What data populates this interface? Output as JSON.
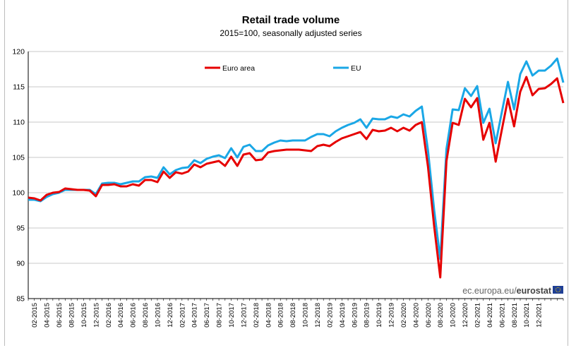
{
  "chart_data": {
    "type": "line",
    "title": "Retail trade volume",
    "subtitle": "2015=100, seasonally adjusted series",
    "xlabel": "",
    "ylabel": "",
    "ylim": [
      85,
      120
    ],
    "yticks": [
      85,
      90,
      95,
      100,
      105,
      110,
      115,
      120
    ],
    "grid": "horizontal",
    "legend_position": "top-left",
    "x_start": "01-2015",
    "x_end": "12-2021",
    "x_tick_labels": [
      "02-2015",
      "04-2015",
      "06-2015",
      "08-2015",
      "10-2015",
      "12-2015",
      "02-2016",
      "04-2016",
      "06-2016",
      "08-2016",
      "10-2016",
      "12-2016",
      "02-2017",
      "04-2017",
      "06-2017",
      "08-2017",
      "10-2017",
      "12-2017",
      "02-2018",
      "04-2018",
      "06-2018",
      "08-2018",
      "10-2018",
      "12-2018",
      "02-2019",
      "04-2019",
      "06-2019",
      "08-2019",
      "10-2019",
      "12-2019",
      "02-2020",
      "04-2020",
      "06-2020",
      "08-2020",
      "10-2020",
      "12-2020",
      "02-2021",
      "04-2021",
      "06-2021",
      "08-2021",
      "10-2021",
      "12-2021"
    ],
    "series": [
      {
        "name": "Euro area",
        "color": "#e60000",
        "values": [
          99.3,
          99.2,
          98.9,
          99.7,
          100.0,
          100.1,
          100.6,
          100.5,
          100.4,
          100.4,
          100.3,
          99.5,
          101.1,
          101.1,
          101.2,
          100.9,
          100.9,
          101.2,
          101.0,
          101.8,
          101.8,
          101.5,
          103.0,
          102.1,
          102.9,
          102.7,
          103.0,
          104.0,
          103.6,
          104.1,
          104.3,
          104.5,
          103.8,
          105.1,
          103.8,
          105.4,
          105.6,
          104.6,
          104.7,
          105.7,
          105.9,
          106.0,
          106.1,
          106.1,
          106.1,
          106.0,
          105.9,
          106.6,
          106.8,
          106.6,
          107.2,
          107.7,
          108.0,
          108.3,
          108.6,
          107.6,
          108.9,
          108.7,
          108.8,
          109.2,
          108.7,
          109.2,
          108.8,
          109.6,
          110.0,
          103.7,
          95.3,
          88.0,
          104.5,
          109.9,
          109.6,
          113.3,
          112.1,
          113.4,
          107.5,
          109.9,
          104.4,
          108.9,
          113.3,
          109.4,
          114.3,
          116.4,
          113.8,
          114.7,
          114.8,
          115.4,
          116.2,
          112.7
        ]
      },
      {
        "name": "EU",
        "color": "#1aa7e6",
        "values": [
          99.0,
          99.0,
          98.8,
          99.4,
          99.8,
          100.0,
          100.4,
          100.4,
          100.4,
          100.4,
          100.4,
          99.8,
          101.3,
          101.4,
          101.4,
          101.2,
          101.4,
          101.6,
          101.6,
          102.2,
          102.3,
          102.1,
          103.6,
          102.6,
          103.2,
          103.5,
          103.6,
          104.6,
          104.2,
          104.8,
          105.1,
          105.3,
          104.9,
          106.3,
          105.0,
          106.5,
          106.8,
          105.9,
          105.9,
          106.7,
          107.1,
          107.4,
          107.3,
          107.4,
          107.4,
          107.4,
          107.9,
          108.3,
          108.3,
          108.0,
          108.7,
          109.2,
          109.6,
          109.9,
          110.4,
          109.2,
          110.5,
          110.4,
          110.4,
          110.8,
          110.6,
          111.1,
          110.8,
          111.6,
          112.2,
          106.0,
          97.6,
          90.6,
          106.2,
          111.8,
          111.7,
          114.8,
          113.7,
          115.1,
          109.9,
          111.9,
          107.0,
          111.4,
          115.7,
          111.8,
          116.8,
          118.6,
          116.6,
          117.3,
          117.3,
          118.0,
          119.0,
          115.6
        ]
      }
    ]
  },
  "source": {
    "prefix": "ec.europa.eu/",
    "brand": "eurostat"
  }
}
